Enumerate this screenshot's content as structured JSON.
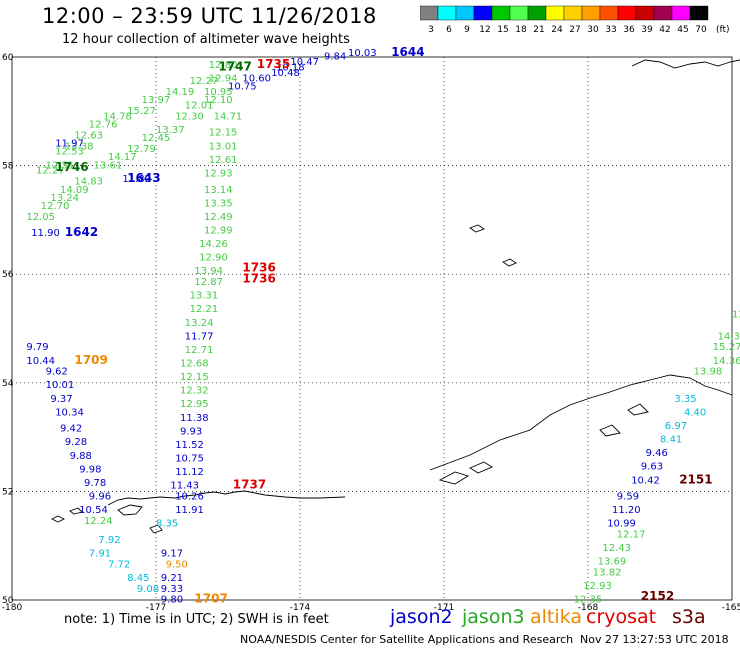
{
  "title": "12:00 – 23:59 UTC 11/26/2018",
  "subtitle": "12 hour collection of altimeter wave heights",
  "colorbar": {
    "ticks": [
      "3",
      "6",
      "9",
      "12",
      "15",
      "18",
      "21",
      "24",
      "27",
      "30",
      "33",
      "36",
      "39",
      "42",
      "45",
      "70"
    ],
    "unit": "(ft)",
    "colors": [
      "#808080",
      "#00ffff",
      "#00c8ff",
      "#0000ff",
      "#00c800",
      "#50ff50",
      "#00a000",
      "#ffff00",
      "#ffd000",
      "#ffa000",
      "#ff5000",
      "#ff0000",
      "#c80000",
      "#a00050",
      "#ff00ff",
      "#000000"
    ]
  },
  "axes": {
    "x_ticks": [
      "-180",
      "-177",
      "-174",
      "-171",
      "-168",
      "-165"
    ],
    "y_ticks": [
      "60",
      "58",
      "56",
      "54",
      "52",
      "50"
    ]
  },
  "chart_data": {
    "type": "scatter",
    "x_range": [
      -180,
      -165
    ],
    "y_range": [
      50,
      60
    ],
    "tracks": [
      {
        "sat": "jason3",
        "color": "#44cc44",
        "labels": [
          {
            "t": "12.27",
            "lon": -179.5,
            "lat": 57.85
          },
          {
            "t": "12.51",
            "lon": -179.3,
            "lat": 57.95
          },
          {
            "t": "12.53",
            "lon": -179.1,
            "lat": 58.2
          },
          {
            "t": "13.38",
            "lon": -178.9,
            "lat": 58.3
          },
          {
            "t": "12.63",
            "lon": -178.7,
            "lat": 58.5
          },
          {
            "t": "12.76",
            "lon": -178.4,
            "lat": 58.7
          },
          {
            "t": "14.78",
            "lon": -178.1,
            "lat": 58.85
          },
          {
            "t": "15.27",
            "lon": -177.6,
            "lat": 58.95
          },
          {
            "t": "13.97",
            "lon": -177.3,
            "lat": 59.15
          },
          {
            "t": "14.19",
            "lon": -176.8,
            "lat": 59.3
          },
          {
            "t": "12.27",
            "lon": -176.3,
            "lat": 59.5
          }
        ]
      },
      {
        "sat": "jason3",
        "color": "#44cc44",
        "labels": [
          {
            "t": "12.05",
            "lon": -179.7,
            "lat": 57.0
          },
          {
            "t": "12.70",
            "lon": -179.4,
            "lat": 57.2
          },
          {
            "t": "13.24",
            "lon": -179.2,
            "lat": 57.35
          },
          {
            "t": "14.09",
            "lon": -179.0,
            "lat": 57.5
          },
          {
            "t": "14.83",
            "lon": -178.7,
            "lat": 57.65
          },
          {
            "t": "13.61",
            "lon": -178.3,
            "lat": 57.95
          },
          {
            "t": "14.17",
            "lon": -178.0,
            "lat": 58.1
          },
          {
            "t": "12.79",
            "lon": -177.6,
            "lat": 58.25
          },
          {
            "t": "12.45",
            "lon": -177.3,
            "lat": 58.45
          },
          {
            "t": "13.37",
            "lon": -177.0,
            "lat": 58.6
          },
          {
            "t": "12.30",
            "lon": -176.6,
            "lat": 58.85
          },
          {
            "t": "12.01",
            "lon": -176.4,
            "lat": 59.05
          },
          {
            "t": "12.10",
            "lon": -176.0,
            "lat": 59.15
          },
          {
            "t": "10.95",
            "lon": -176.0,
            "lat": 59.3
          },
          {
            "t": "12.94",
            "lon": -175.9,
            "lat": 59.55
          },
          {
            "t": "12.80",
            "lon": -175.9,
            "lat": 59.8
          }
        ]
      },
      {
        "sat": "jason2",
        "color": "#0000cc",
        "labels": [
          {
            "t": "11.97",
            "lon": -179.1,
            "lat": 58.35
          },
          {
            "t": "11.82",
            "lon": -177.7,
            "lat": 57.7
          },
          {
            "t": "11.90",
            "lon": -179.6,
            "lat": 56.7
          },
          {
            "t": "10.75",
            "lon": -175.5,
            "lat": 59.4
          },
          {
            "t": "10.60",
            "lon": -175.2,
            "lat": 59.55
          },
          {
            "t": "10.48",
            "lon": -174.6,
            "lat": 59.65
          },
          {
            "t": "10.18",
            "lon": -174.5,
            "lat": 59.75
          },
          {
            "t": "10.47",
            "lon": -174.2,
            "lat": 59.85
          },
          {
            "t": "9.84",
            "lon": -173.5,
            "lat": 59.95
          },
          {
            "t": "10.03",
            "lon": -173.0,
            "lat": 60.02
          }
        ]
      },
      {
        "sat": "jason3",
        "color": "#44cc44",
        "labels": [
          {
            "t": "14.71",
            "lon": -175.8,
            "lat": 58.85
          },
          {
            "t": "12.15",
            "lon": -175.9,
            "lat": 58.55
          },
          {
            "t": "13.01",
            "lon": -175.9,
            "lat": 58.3
          },
          {
            "t": "12.61",
            "lon": -175.9,
            "lat": 58.05
          },
          {
            "t": "12.93",
            "lon": -176.0,
            "lat": 57.8
          },
          {
            "t": "13.14",
            "lon": -176.0,
            "lat": 57.5
          },
          {
            "t": "13.35",
            "lon": -176.0,
            "lat": 57.25
          },
          {
            "t": "12.49",
            "lon": -176.0,
            "lat": 57.0
          },
          {
            "t": "12.99",
            "lon": -176.0,
            "lat": 56.75
          },
          {
            "t": "14.26",
            "lon": -176.1,
            "lat": 56.5
          },
          {
            "t": "12.90",
            "lon": -176.1,
            "lat": 56.25
          },
          {
            "t": "13.94",
            "lon": -176.2,
            "lat": 56.0
          },
          {
            "t": "12.87",
            "lon": -176.2,
            "lat": 55.8
          },
          {
            "t": "13.31",
            "lon": -176.3,
            "lat": 55.55
          },
          {
            "t": "12.21",
            "lon": -176.3,
            "lat": 55.3
          },
          {
            "t": "13.24",
            "lon": -176.4,
            "lat": 55.05
          },
          {
            "t": "12.71",
            "lon": -176.4,
            "lat": 54.55
          },
          {
            "t": "12.68",
            "lon": -176.5,
            "lat": 54.3
          },
          {
            "t": "12.15",
            "lon": -176.5,
            "lat": 54.05
          },
          {
            "t": "12.32",
            "lon": -176.5,
            "lat": 53.8
          },
          {
            "t": "12.95",
            "lon": -176.5,
            "lat": 53.55
          }
        ]
      },
      {
        "sat": "jason2",
        "color": "#0000cc",
        "labels": [
          {
            "t": "11.77",
            "lon": -176.4,
            "lat": 54.8
          },
          {
            "t": "11.38",
            "lon": -176.5,
            "lat": 53.3
          },
          {
            "t": "9.93",
            "lon": -176.5,
            "lat": 53.05
          },
          {
            "t": "11.52",
            "lon": -176.6,
            "lat": 52.8
          },
          {
            "t": "10.75",
            "lon": -176.6,
            "lat": 52.55
          },
          {
            "t": "11.12",
            "lon": -176.6,
            "lat": 52.3
          },
          {
            "t": "11.43",
            "lon": -176.7,
            "lat": 52.05
          },
          {
            "t": "10.26",
            "lon": -176.6,
            "lat": 51.85
          },
          {
            "t": "11.91",
            "lon": -176.6,
            "lat": 51.6
          },
          {
            "t": "9.17",
            "lon": -176.9,
            "lat": 50.8
          },
          {
            "t": "9.21",
            "lon": -176.9,
            "lat": 50.35
          },
          {
            "t": "9.33",
            "lon": -176.9,
            "lat": 50.15
          },
          {
            "t": "9.80",
            "lon": -176.9,
            "lat": 49.95
          }
        ]
      },
      {
        "sat": "jason2",
        "color": "#0000cc",
        "labels": [
          {
            "t": "9.79",
            "lon": -179.7,
            "lat": 54.6
          },
          {
            "t": "10.44",
            "lon": -179.7,
            "lat": 54.35
          },
          {
            "t": "9.62",
            "lon": -179.3,
            "lat": 54.15
          },
          {
            "t": "10.01",
            "lon": -179.3,
            "lat": 53.9
          },
          {
            "t": "9.37",
            "lon": -179.2,
            "lat": 53.65
          },
          {
            "t": "10.34",
            "lon": -179.1,
            "lat": 53.4
          },
          {
            "t": "9.42",
            "lon": -179.0,
            "lat": 53.1
          },
          {
            "t": "9.28",
            "lon": -178.9,
            "lat": 52.85
          },
          {
            "t": "9.88",
            "lon": -178.8,
            "lat": 52.6
          },
          {
            "t": "9.98",
            "lon": -178.6,
            "lat": 52.35
          },
          {
            "t": "9.78",
            "lon": -178.5,
            "lat": 52.1
          },
          {
            "t": "9.96",
            "lon": -178.4,
            "lat": 51.85
          },
          {
            "t": "10.54",
            "lon": -178.6,
            "lat": 51.6
          }
        ]
      },
      {
        "sat": "jason2",
        "color": "#00bbdd",
        "labels": [
          {
            "t": "8.35",
            "lon": -177.0,
            "lat": 51.35
          },
          {
            "t": "7.92",
            "lon": -178.2,
            "lat": 51.05
          },
          {
            "t": "7.91",
            "lon": -178.4,
            "lat": 50.8
          },
          {
            "t": "7.72",
            "lon": -178.0,
            "lat": 50.6
          },
          {
            "t": "8.45",
            "lon": -177.6,
            "lat": 50.35
          },
          {
            "t": "9.08",
            "lon": -177.4,
            "lat": 50.15
          }
        ]
      },
      {
        "sat": "jason3",
        "color": "#44cc44",
        "labels": [
          {
            "t": "12.24",
            "lon": -178.5,
            "lat": 51.4
          }
        ]
      },
      {
        "sat": "altika",
        "color": "#ee8800",
        "labels": [
          {
            "t": "9.50",
            "lon": -176.8,
            "lat": 50.6
          }
        ]
      },
      {
        "sat": "jason3",
        "color": "#44cc44",
        "labels": [
          {
            "t": "12.2",
            "lon": -165.0,
            "lat": 55.2
          },
          {
            "t": "14.39",
            "lon": -165.3,
            "lat": 54.8
          },
          {
            "t": "15.27",
            "lon": -165.4,
            "lat": 54.6
          },
          {
            "t": "14.36",
            "lon": -165.4,
            "lat": 54.35
          },
          {
            "t": "13.98",
            "lon": -165.8,
            "lat": 54.15
          },
          {
            "t": "12.17",
            "lon": -167.4,
            "lat": 51.15
          },
          {
            "t": "12.43",
            "lon": -167.7,
            "lat": 50.9
          },
          {
            "t": "13.69",
            "lon": -167.8,
            "lat": 50.65
          },
          {
            "t": "13.82",
            "lon": -167.9,
            "lat": 50.45
          },
          {
            "t": "12.93",
            "lon": -168.1,
            "lat": 50.2
          },
          {
            "t": "12.35",
            "lon": -168.3,
            "lat": 49.95
          }
        ]
      },
      {
        "sat": "jason2",
        "color": "#00bbdd",
        "labels": [
          {
            "t": "3.35",
            "lon": -166.2,
            "lat": 53.65
          },
          {
            "t": "4.40",
            "lon": -166.0,
            "lat": 53.4
          },
          {
            "t": "6.97",
            "lon": -166.4,
            "lat": 53.15
          },
          {
            "t": "8.41",
            "lon": -166.5,
            "lat": 52.9
          }
        ]
      },
      {
        "sat": "jason2",
        "color": "#0000cc",
        "labels": [
          {
            "t": "9.46",
            "lon": -166.8,
            "lat": 52.65
          },
          {
            "t": "9.63",
            "lon": -166.9,
            "lat": 52.4
          },
          {
            "t": "10.42",
            "lon": -167.1,
            "lat": 52.15
          },
          {
            "t": "9.59",
            "lon": -167.4,
            "lat": 51.85
          },
          {
            "t": "11.20",
            "lon": -167.5,
            "lat": 51.6
          },
          {
            "t": "10.99",
            "lon": -167.6,
            "lat": 51.35
          }
        ]
      }
    ],
    "pass_times": [
      {
        "t": "1746",
        "lon": -179.1,
        "lat": 57.9,
        "color": "#006600"
      },
      {
        "t": "1643",
        "lon": -177.6,
        "lat": 57.7,
        "color": "#0000cc"
      },
      {
        "t": "1642",
        "lon": -178.9,
        "lat": 56.7,
        "color": "#0000cc"
      },
      {
        "t": "1747",
        "lon": -175.7,
        "lat": 59.75,
        "color": "#006600"
      },
      {
        "t": "1735",
        "lon": -174.9,
        "lat": 59.8,
        "color": "#dd0000"
      },
      {
        "t": "1644",
        "lon": -172.1,
        "lat": 60.02,
        "color": "#0000cc"
      },
      {
        "t": "1736",
        "lon": -175.2,
        "lat": 56.05,
        "color": "#dd0000"
      },
      {
        "t": "1736",
        "lon": -175.2,
        "lat": 55.85,
        "color": "#dd0000"
      },
      {
        "t": "1709",
        "lon": -178.7,
        "lat": 54.35,
        "color": "#ee8800"
      },
      {
        "t": "1737",
        "lon": -175.4,
        "lat": 52.05,
        "color": "#dd0000"
      },
      {
        "t": "1707",
        "lon": -176.2,
        "lat": 49.95,
        "color": "#ee8800"
      },
      {
        "t": "2151",
        "lon": -166.1,
        "lat": 52.15,
        "color": "#660000"
      },
      {
        "t": "2152",
        "lon": -166.9,
        "lat": 50.0,
        "color": "#660000"
      }
    ]
  },
  "legend": {
    "note": "note:  1)  Time is in UTC;  2)  SWH is in feet",
    "satellites": [
      {
        "name": "jason2",
        "color": "#0000cc"
      },
      {
        "name": "jason3",
        "color": "#22aa22"
      },
      {
        "name": "altika",
        "color": "#ee8800"
      },
      {
        "name": "cryosat",
        "color": "#dd0000"
      },
      {
        "name": "s3a",
        "color": "#660000"
      }
    ]
  },
  "credit": "NOAA/NESDIS Center for Satellite Applications and Research",
  "timestamp": "Nov 27 13:27:53 UTC 2018"
}
